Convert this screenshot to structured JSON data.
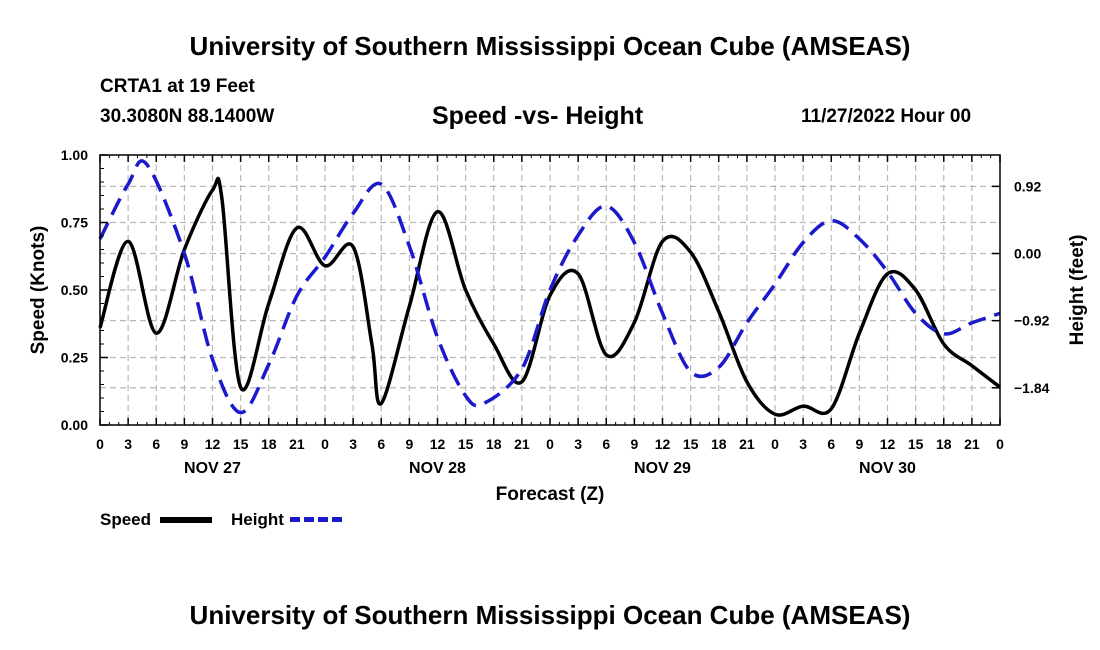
{
  "header": {
    "title": "University of Southern Mississippi Ocean Cube (AMSEAS)",
    "station": "CRTA1 at 19 Feet",
    "coords": "30.3080N  88.1400W",
    "chart_title": "Speed -vs- Height",
    "datetime": "11/27/2022 Hour 00"
  },
  "footer": {
    "title": "University of Southern Mississippi Ocean Cube (AMSEAS)"
  },
  "legend": {
    "speed_label": "Speed",
    "height_label": "Height"
  },
  "colors": {
    "speed": "#000000",
    "height": "#1a1acc",
    "grid": "#b8b8b8"
  },
  "chart_data": {
    "type": "line",
    "title": "Speed -vs- Height",
    "xlabel": "Forecast (Z)",
    "ylabel": "Speed (Knots)",
    "y2label": "Height (feet)",
    "xlim": [
      0,
      96
    ],
    "ylim": [
      0,
      1
    ],
    "y2lim": [
      -2.35,
      1.35
    ],
    "x_tick_labels": [
      "0",
      "3",
      "6",
      "9",
      "12",
      "15",
      "18",
      "21",
      "0",
      "3",
      "6",
      "9",
      "12",
      "15",
      "18",
      "21",
      "0",
      "3",
      "6",
      "9",
      "12",
      "15",
      "18",
      "21",
      "0",
      "3",
      "6",
      "9",
      "12",
      "15",
      "18",
      "21",
      "0"
    ],
    "date_labels": [
      {
        "label": "NOV 27",
        "hour": 12
      },
      {
        "label": "NOV 28",
        "hour": 36
      },
      {
        "label": "NOV 29",
        "hour": 60
      },
      {
        "label": "NOV 30",
        "hour": 84
      }
    ],
    "y_ticks": [
      0.0,
      0.25,
      0.5,
      0.75,
      1.0
    ],
    "y_tick_labels": [
      "0.00",
      "0.25",
      "0.50",
      "0.75",
      "1.00"
    ],
    "y2_ticks": [
      0.92,
      0.0,
      -0.92,
      -1.84
    ],
    "y2_tick_labels": [
      "0.92",
      "0.00",
      "−0.92",
      "−1.84"
    ],
    "series": [
      {
        "name": "Speed",
        "axis": "left",
        "x": [
          0,
          3,
          6,
          9,
          12,
          13,
          15,
          18,
          21,
          24,
          27,
          29,
          30,
          33,
          36,
          39,
          42,
          45,
          48,
          51,
          54,
          57,
          60,
          63,
          66,
          69,
          72,
          75,
          78,
          81,
          84,
          87,
          90,
          93,
          96
        ],
        "values": [
          0.36,
          0.68,
          0.34,
          0.65,
          0.87,
          0.84,
          0.14,
          0.45,
          0.73,
          0.59,
          0.66,
          0.3,
          0.08,
          0.44,
          0.79,
          0.5,
          0.3,
          0.16,
          0.48,
          0.56,
          0.26,
          0.38,
          0.68,
          0.64,
          0.42,
          0.16,
          0.04,
          0.07,
          0.06,
          0.34,
          0.56,
          0.5,
          0.3,
          0.22,
          0.14
        ]
      },
      {
        "name": "Height",
        "axis": "right",
        "x": [
          0,
          3,
          5,
          9,
          12,
          15,
          18,
          21,
          24,
          27,
          30,
          33,
          36,
          39,
          41,
          45,
          48,
          51,
          54,
          57,
          60,
          63,
          66,
          69,
          72,
          75,
          78,
          81,
          84,
          87,
          90,
          93,
          96
        ],
        "values": [
          0.2,
          0.95,
          1.22,
          0.0,
          -1.45,
          -2.18,
          -1.52,
          -0.58,
          -0.05,
          0.55,
          0.95,
          0.1,
          -1.15,
          -1.95,
          -2.05,
          -1.58,
          -0.5,
          0.25,
          0.65,
          0.15,
          -0.82,
          -1.62,
          -1.56,
          -0.95,
          -0.42,
          0.15,
          0.45,
          0.2,
          -0.25,
          -0.82,
          -1.1,
          -0.95,
          -0.82
        ]
      }
    ]
  }
}
